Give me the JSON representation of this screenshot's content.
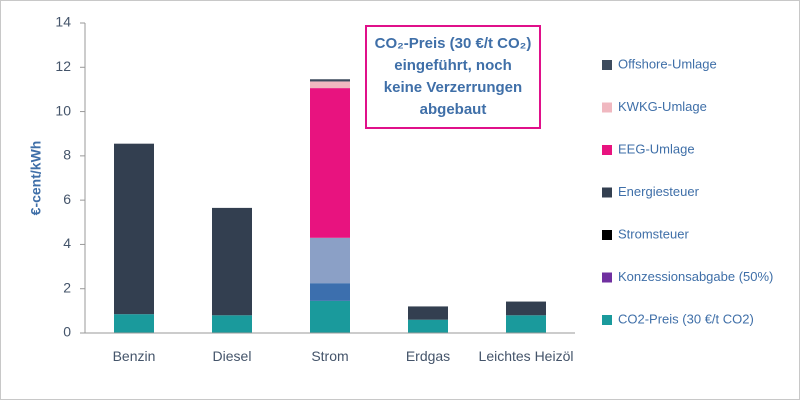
{
  "chart_data": {
    "type": "stacked_bar",
    "ylabel": "€-cent/kWh",
    "annotation": [
      "CO₂-Preis (30 €/t CO₂)",
      "eingeführt, noch",
      "keine Verzerrungen",
      "abgebaut"
    ],
    "categories": [
      "Benzin",
      "Diesel",
      "Strom",
      "Erdgas",
      "Leichtes Heizöl"
    ],
    "series": [
      {
        "name": "CO2-Preis (30 €/t CO2)",
        "color": "#1a9a9c",
        "bar_color": "#1a9a9c",
        "values": [
          0.85,
          0.8,
          1.45,
          0.6,
          0.8
        ]
      },
      {
        "name": "Konzessionsabgabe (50%)",
        "color": "#7030a0",
        "bar_color": "#3c6fae",
        "values": [
          null,
          null,
          0.8,
          null,
          null
        ]
      },
      {
        "name": "Stromsteuer",
        "color": "#000000",
        "bar_color": "#8ba0c6",
        "values": [
          null,
          null,
          2.05,
          null,
          null
        ]
      },
      {
        "name": "Energiesteuer",
        "color": "#333f50",
        "bar_color": "#333f50",
        "values": [
          7.7,
          4.85,
          null,
          0.6,
          0.62
        ]
      },
      {
        "name": "EEG-Umlage",
        "color": "#e8137f",
        "bar_color": "#e8137f",
        "values": [
          null,
          null,
          6.76,
          null,
          null
        ]
      },
      {
        "name": "KWKG-Umlage",
        "color": "#f0b8c0",
        "bar_color": "#f0b8c0",
        "values": [
          null,
          null,
          0.3,
          null,
          null
        ]
      },
      {
        "name": "Offshore-Umlage",
        "color": "#3d4b5e",
        "bar_color": "#3d4b5e",
        "values": [
          null,
          null,
          0.1,
          null,
          null
        ]
      }
    ],
    "ylim": [
      0,
      14
    ],
    "yticks": [
      0,
      2,
      4,
      6,
      8,
      10,
      12,
      14
    ],
    "grid": false
  }
}
